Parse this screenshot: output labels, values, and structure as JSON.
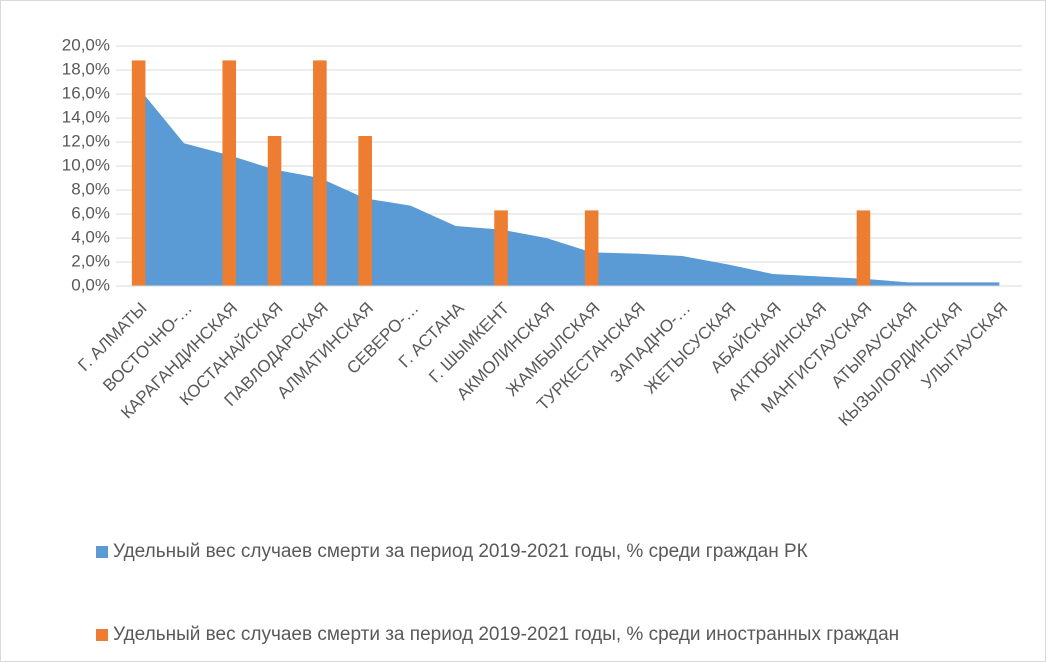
{
  "chart_data": {
    "type": "bar",
    "categories": [
      "Г. АЛМАТЫ",
      "ВОСТОЧНО-…",
      "КАРАГАНДИНСКАЯ",
      "КОСТАНАЙСКАЯ",
      "ПАВЛОДАРСКАЯ",
      "АЛМАТИНСКАЯ",
      "СЕВЕРО-…",
      "Г. АСТАНА",
      "Г. ШЫМКЕНТ",
      "АКМОЛИНСКАЯ",
      "ЖАМБЫЛСКАЯ",
      "ТУРКЕСТАНСКАЯ",
      "ЗАПАДНО-…",
      "ЖЕТЫСУСКАЯ",
      "АБАЙСКАЯ",
      "АКТЮБИНСКАЯ",
      "МАНГИСТАУСКАЯ",
      "АТЫРАУСКАЯ",
      "КЫЗЫЛОРДИНСКАЯ",
      "УЛЫТАУСКАЯ"
    ],
    "series": [
      {
        "name": "Удельный вес случаев смерти за период 2019-2021 годы, % среди граждан РК",
        "type": "area",
        "color": "#5b9bd5",
        "values": [
          16.5,
          11.9,
          10.9,
          9.7,
          9.0,
          7.3,
          6.7,
          5.0,
          4.7,
          4.0,
          2.8,
          2.7,
          2.5,
          1.8,
          1.0,
          0.8,
          0.6,
          0.3,
          0.3,
          0.3
        ]
      },
      {
        "name": "Удельный вес случаев смерти за период 2019-2021 годы, % среди иностранных граждан",
        "type": "bar",
        "color": "#ed7d31",
        "values": [
          18.8,
          0,
          18.8,
          12.5,
          18.8,
          12.5,
          0,
          0,
          6.3,
          0,
          6.3,
          0,
          0,
          0,
          0,
          0,
          6.3,
          0,
          0,
          0
        ]
      }
    ],
    "ylim": [
      0,
      20
    ],
    "yticks": [
      {
        "value": 0,
        "label": "0,0%"
      },
      {
        "value": 2,
        "label": "2,0%"
      },
      {
        "value": 4,
        "label": "4,0%"
      },
      {
        "value": 6,
        "label": "6,0%"
      },
      {
        "value": 8,
        "label": "8,0%"
      },
      {
        "value": 10,
        "label": "10,0%"
      },
      {
        "value": 12,
        "label": "12,0%"
      },
      {
        "value": 14,
        "label": "14,0%"
      },
      {
        "value": 16,
        "label": "16,0%"
      },
      {
        "value": 18,
        "label": "18,0%"
      },
      {
        "value": 20,
        "label": "20,0%"
      }
    ],
    "grid": true,
    "legend": "bottom"
  }
}
